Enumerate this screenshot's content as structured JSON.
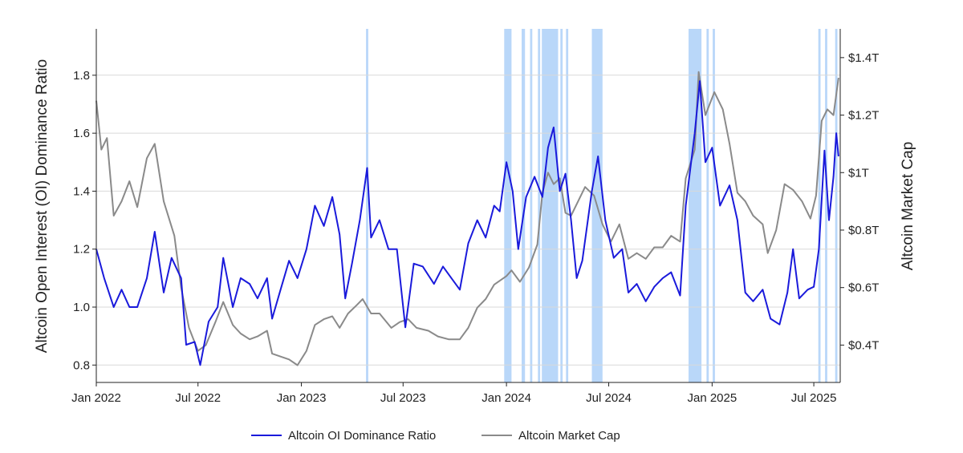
{
  "chart_data": {
    "type": "line",
    "xlabel": "",
    "ylabel_left": "Altcoin Open Interest (OI) Dominance Ratio",
    "ylabel_right": "Altcoin Market Cap",
    "x_ticks": [
      "Jan 2022",
      "Jul 2022",
      "Jan 2023",
      "Jul 2023",
      "Jan 2024",
      "Jul 2024",
      "Jan 2025",
      "Jul 2025"
    ],
    "y_left": {
      "min": 0.74,
      "max": 1.96,
      "ticks": [
        0.8,
        1.0,
        1.2,
        1.4,
        1.6,
        1.8
      ],
      "tick_labels": [
        "0.8",
        "1.0",
        "1.2",
        "1.4",
        "1.6",
        "1.8"
      ]
    },
    "y_right": {
      "min": 0.27,
      "max": 1.5,
      "ticks": [
        0.4,
        0.6,
        0.8,
        1.0,
        1.2,
        1.4
      ],
      "tick_labels": [
        "$0.4T",
        "$0.6T",
        "$0.8T",
        "$1T",
        "$1.2T",
        "$1.4T"
      ]
    },
    "grid": true,
    "legend_position": "bottom-center",
    "colors": {
      "oi": "#1a1adb",
      "mcap": "#8a8a8a",
      "highlight": "#a8cdf7"
    },
    "highlight_periods": [
      [
        "2023-04-26",
        "2023-04-30"
      ],
      [
        "2023-12-28",
        "2024-01-10"
      ],
      [
        "2024-01-28",
        "2024-02-03"
      ],
      [
        "2024-02-12",
        "2024-02-16"
      ],
      [
        "2024-02-26",
        "2024-03-01"
      ],
      [
        "2024-03-04",
        "2024-04-02"
      ],
      [
        "2024-04-06",
        "2024-04-10"
      ],
      [
        "2024-04-16",
        "2024-04-20"
      ],
      [
        "2024-06-01",
        "2024-06-20"
      ],
      [
        "2024-11-20",
        "2024-12-13"
      ],
      [
        "2024-12-22",
        "2024-12-26"
      ],
      [
        "2025-01-02",
        "2025-01-06"
      ],
      [
        "2025-07-09",
        "2025-07-13"
      ],
      [
        "2025-07-21",
        "2025-07-25"
      ],
      [
        "2025-08-08",
        "2025-08-12"
      ]
    ],
    "series": [
      {
        "name": "Altcoin OI Dominance Ratio",
        "axis": "left",
        "points": [
          [
            "2022-01-01",
            1.2
          ],
          [
            "2022-01-15",
            1.1
          ],
          [
            "2022-02-01",
            1.0
          ],
          [
            "2022-02-15",
            1.06
          ],
          [
            "2022-03-01",
            1.0
          ],
          [
            "2022-03-15",
            1.0
          ],
          [
            "2022-04-01",
            1.1
          ],
          [
            "2022-04-15",
            1.26
          ],
          [
            "2022-05-01",
            1.05
          ],
          [
            "2022-05-15",
            1.17
          ],
          [
            "2022-06-01",
            1.1
          ],
          [
            "2022-06-10",
            0.87
          ],
          [
            "2022-06-25",
            0.88
          ],
          [
            "2022-07-05",
            0.8
          ],
          [
            "2022-07-20",
            0.95
          ],
          [
            "2022-08-05",
            1.0
          ],
          [
            "2022-08-15",
            1.17
          ],
          [
            "2022-09-01",
            1.0
          ],
          [
            "2022-09-15",
            1.1
          ],
          [
            "2022-10-01",
            1.08
          ],
          [
            "2022-10-15",
            1.03
          ],
          [
            "2022-11-01",
            1.1
          ],
          [
            "2022-11-10",
            0.96
          ],
          [
            "2022-11-25",
            1.06
          ],
          [
            "2022-12-10",
            1.16
          ],
          [
            "2022-12-25",
            1.1
          ],
          [
            "2023-01-10",
            1.2
          ],
          [
            "2023-01-25",
            1.35
          ],
          [
            "2023-02-10",
            1.28
          ],
          [
            "2023-02-25",
            1.38
          ],
          [
            "2023-03-10",
            1.25
          ],
          [
            "2023-03-20",
            1.03
          ],
          [
            "2023-04-01",
            1.15
          ],
          [
            "2023-04-15",
            1.3
          ],
          [
            "2023-04-28",
            1.48
          ],
          [
            "2023-05-05",
            1.24
          ],
          [
            "2023-05-20",
            1.3
          ],
          [
            "2023-06-05",
            1.2
          ],
          [
            "2023-06-20",
            1.2
          ],
          [
            "2023-07-05",
            0.93
          ],
          [
            "2023-07-20",
            1.15
          ],
          [
            "2023-08-05",
            1.14
          ],
          [
            "2023-08-25",
            1.08
          ],
          [
            "2023-09-10",
            1.14
          ],
          [
            "2023-09-25",
            1.1
          ],
          [
            "2023-10-10",
            1.06
          ],
          [
            "2023-10-25",
            1.22
          ],
          [
            "2023-11-10",
            1.3
          ],
          [
            "2023-11-25",
            1.24
          ],
          [
            "2023-12-10",
            1.35
          ],
          [
            "2023-12-20",
            1.33
          ],
          [
            "2024-01-01",
            1.5
          ],
          [
            "2024-01-12",
            1.4
          ],
          [
            "2024-01-22",
            1.2
          ],
          [
            "2024-02-05",
            1.38
          ],
          [
            "2024-02-20",
            1.45
          ],
          [
            "2024-03-05",
            1.38
          ],
          [
            "2024-03-15",
            1.55
          ],
          [
            "2024-03-25",
            1.62
          ],
          [
            "2024-04-05",
            1.4
          ],
          [
            "2024-04-15",
            1.46
          ],
          [
            "2024-04-25",
            1.3
          ],
          [
            "2024-05-05",
            1.1
          ],
          [
            "2024-05-15",
            1.16
          ],
          [
            "2024-06-01",
            1.4
          ],
          [
            "2024-06-12",
            1.52
          ],
          [
            "2024-06-25",
            1.3
          ],
          [
            "2024-07-10",
            1.17
          ],
          [
            "2024-07-25",
            1.2
          ],
          [
            "2024-08-05",
            1.05
          ],
          [
            "2024-08-20",
            1.08
          ],
          [
            "2024-09-05",
            1.02
          ],
          [
            "2024-09-20",
            1.07
          ],
          [
            "2024-10-05",
            1.1
          ],
          [
            "2024-10-20",
            1.12
          ],
          [
            "2024-11-05",
            1.04
          ],
          [
            "2024-11-15",
            1.35
          ],
          [
            "2024-12-01",
            1.6
          ],
          [
            "2024-12-10",
            1.78
          ],
          [
            "2024-12-20",
            1.5
          ],
          [
            "2025-01-01",
            1.55
          ],
          [
            "2025-01-15",
            1.35
          ],
          [
            "2025-02-01",
            1.42
          ],
          [
            "2025-02-15",
            1.3
          ],
          [
            "2025-03-01",
            1.05
          ],
          [
            "2025-03-15",
            1.02
          ],
          [
            "2025-04-01",
            1.06
          ],
          [
            "2025-04-15",
            0.96
          ],
          [
            "2025-05-01",
            0.94
          ],
          [
            "2025-05-15",
            1.05
          ],
          [
            "2025-05-25",
            1.2
          ],
          [
            "2025-06-05",
            1.03
          ],
          [
            "2025-06-20",
            1.06
          ],
          [
            "2025-07-01",
            1.07
          ],
          [
            "2025-07-10",
            1.2
          ],
          [
            "2025-07-20",
            1.54
          ],
          [
            "2025-07-28",
            1.3
          ],
          [
            "2025-08-05",
            1.45
          ],
          [
            "2025-08-10",
            1.6
          ],
          [
            "2025-08-14",
            1.52
          ]
        ]
      },
      {
        "name": "Altcoin Market Cap",
        "axis": "right",
        "points": [
          [
            "2022-01-01",
            1.25
          ],
          [
            "2022-01-10",
            1.08
          ],
          [
            "2022-01-20",
            1.12
          ],
          [
            "2022-02-01",
            0.85
          ],
          [
            "2022-02-15",
            0.9
          ],
          [
            "2022-03-01",
            0.97
          ],
          [
            "2022-03-15",
            0.88
          ],
          [
            "2022-04-01",
            1.05
          ],
          [
            "2022-04-15",
            1.1
          ],
          [
            "2022-05-01",
            0.9
          ],
          [
            "2022-05-20",
            0.78
          ],
          [
            "2022-06-01",
            0.6
          ],
          [
            "2022-06-15",
            0.46
          ],
          [
            "2022-07-01",
            0.38
          ],
          [
            "2022-07-15",
            0.4
          ],
          [
            "2022-08-01",
            0.48
          ],
          [
            "2022-08-15",
            0.55
          ],
          [
            "2022-09-01",
            0.47
          ],
          [
            "2022-09-15",
            0.44
          ],
          [
            "2022-10-01",
            0.42
          ],
          [
            "2022-10-15",
            0.43
          ],
          [
            "2022-11-01",
            0.45
          ],
          [
            "2022-11-10",
            0.37
          ],
          [
            "2022-11-25",
            0.36
          ],
          [
            "2022-12-10",
            0.35
          ],
          [
            "2022-12-25",
            0.33
          ],
          [
            "2023-01-10",
            0.38
          ],
          [
            "2023-01-25",
            0.47
          ],
          [
            "2023-02-10",
            0.49
          ],
          [
            "2023-02-25",
            0.5
          ],
          [
            "2023-03-10",
            0.46
          ],
          [
            "2023-03-25",
            0.51
          ],
          [
            "2023-04-10",
            0.54
          ],
          [
            "2023-04-20",
            0.56
          ],
          [
            "2023-05-05",
            0.51
          ],
          [
            "2023-05-20",
            0.51
          ],
          [
            "2023-06-10",
            0.46
          ],
          [
            "2023-06-25",
            0.48
          ],
          [
            "2023-07-10",
            0.49
          ],
          [
            "2023-07-25",
            0.46
          ],
          [
            "2023-08-15",
            0.45
          ],
          [
            "2023-09-01",
            0.43
          ],
          [
            "2023-09-20",
            0.42
          ],
          [
            "2023-10-10",
            0.42
          ],
          [
            "2023-10-25",
            0.46
          ],
          [
            "2023-11-10",
            0.53
          ],
          [
            "2023-11-25",
            0.56
          ],
          [
            "2023-12-10",
            0.61
          ],
          [
            "2024-01-01",
            0.64
          ],
          [
            "2024-01-10",
            0.66
          ],
          [
            "2024-01-25",
            0.62
          ],
          [
            "2024-02-10",
            0.67
          ],
          [
            "2024-02-25",
            0.75
          ],
          [
            "2024-03-05",
            0.93
          ],
          [
            "2024-03-15",
            1.0
          ],
          [
            "2024-03-25",
            0.96
          ],
          [
            "2024-04-05",
            0.98
          ],
          [
            "2024-04-15",
            0.86
          ],
          [
            "2024-04-25",
            0.85
          ],
          [
            "2024-05-05",
            0.89
          ],
          [
            "2024-05-20",
            0.95
          ],
          [
            "2024-06-05",
            0.92
          ],
          [
            "2024-06-20",
            0.82
          ],
          [
            "2024-07-05",
            0.76
          ],
          [
            "2024-07-20",
            0.82
          ],
          [
            "2024-08-05",
            0.7
          ],
          [
            "2024-08-20",
            0.72
          ],
          [
            "2024-09-05",
            0.7
          ],
          [
            "2024-09-20",
            0.74
          ],
          [
            "2024-10-05",
            0.74
          ],
          [
            "2024-10-20",
            0.78
          ],
          [
            "2024-11-05",
            0.76
          ],
          [
            "2024-11-15",
            0.98
          ],
          [
            "2024-12-01",
            1.08
          ],
          [
            "2024-12-08",
            1.35
          ],
          [
            "2024-12-20",
            1.2
          ],
          [
            "2025-01-05",
            1.28
          ],
          [
            "2025-01-20",
            1.22
          ],
          [
            "2025-02-01",
            1.1
          ],
          [
            "2025-02-15",
            0.93
          ],
          [
            "2025-03-01",
            0.9
          ],
          [
            "2025-03-15",
            0.85
          ],
          [
            "2025-04-01",
            0.82
          ],
          [
            "2025-04-10",
            0.72
          ],
          [
            "2025-04-25",
            0.8
          ],
          [
            "2025-05-10",
            0.96
          ],
          [
            "2025-05-25",
            0.94
          ],
          [
            "2025-06-10",
            0.9
          ],
          [
            "2025-06-25",
            0.84
          ],
          [
            "2025-07-05",
            0.92
          ],
          [
            "2025-07-15",
            1.18
          ],
          [
            "2025-07-25",
            1.22
          ],
          [
            "2025-08-05",
            1.2
          ],
          [
            "2025-08-14",
            1.33
          ]
        ]
      }
    ]
  }
}
